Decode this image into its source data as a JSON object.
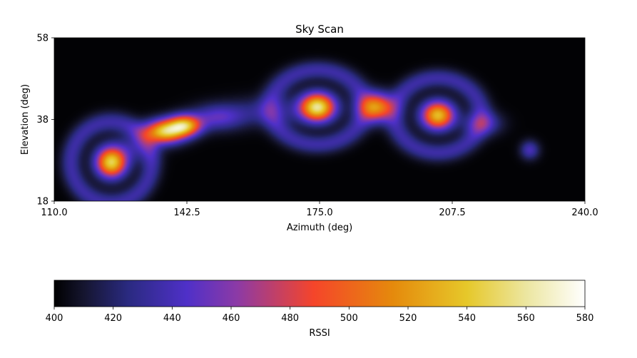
{
  "chart_data": {
    "type": "heatmap",
    "title": "Sky Scan",
    "xlabel": "Azimuth (deg)",
    "ylabel": "Elevation (deg)",
    "xlim": [
      110.0,
      240.0
    ],
    "ylim": [
      18,
      58
    ],
    "x_ticks": [
      110.0,
      142.5,
      175.0,
      207.5,
      240.0
    ],
    "x_tick_labels": [
      "110.0",
      "142.5",
      "175.0",
      "207.5",
      "240.0"
    ],
    "y_ticks": [
      18,
      38,
      58
    ],
    "y_tick_labels": [
      "18",
      "38",
      "58"
    ],
    "grid": false,
    "colormap": "CMRmap",
    "colormap_stops": [
      {
        "v": 400,
        "color": "#000000"
      },
      {
        "v": 410,
        "color": "#15152f"
      },
      {
        "v": 425,
        "color": "#2a2a80"
      },
      {
        "v": 445,
        "color": "#4f30c8"
      },
      {
        "v": 462,
        "color": "#8c3aa6"
      },
      {
        "v": 488,
        "color": "#f5452a"
      },
      {
        "v": 515,
        "color": "#e58a0c"
      },
      {
        "v": 540,
        "color": "#e6c82a"
      },
      {
        "v": 560,
        "color": "#ece6a0"
      },
      {
        "v": 580,
        "color": "#ffffff"
      }
    ],
    "background_level": 401,
    "sources": [
      {
        "azimuth": 124.0,
        "elevation": 27.5,
        "peak": 545,
        "sigma_az": 2.6,
        "sigma_el": 2.6,
        "ring": true
      },
      {
        "azimuth": 137.0,
        "elevation": 35.0,
        "peak": 535,
        "sigma_az": 3.4,
        "sigma_el": 2.0,
        "ring": false
      },
      {
        "azimuth": 142.0,
        "elevation": 36.5,
        "peak": 520,
        "sigma_az": 2.8,
        "sigma_el": 1.8,
        "ring": false
      },
      {
        "azimuth": 150.0,
        "elevation": 38.5,
        "peak": 445,
        "sigma_az": 4.5,
        "sigma_el": 2.2,
        "ring": false
      },
      {
        "azimuth": 174.5,
        "elevation": 41.0,
        "peak": 555,
        "sigma_az": 3.0,
        "sigma_el": 2.4,
        "ring": true
      },
      {
        "azimuth": 189.0,
        "elevation": 41.0,
        "peak": 510,
        "sigma_az": 2.8,
        "sigma_el": 2.4,
        "ring": false
      },
      {
        "azimuth": 204.0,
        "elevation": 39.0,
        "peak": 535,
        "sigma_az": 2.8,
        "sigma_el": 2.4,
        "ring": true
      },
      {
        "azimuth": 215.0,
        "elevation": 37.0,
        "peak": 440,
        "sigma_az": 3.2,
        "sigma_el": 2.0,
        "ring": false
      },
      {
        "azimuth": 226.5,
        "elevation": 30.5,
        "peak": 440,
        "sigma_az": 1.6,
        "sigma_el": 1.6,
        "ring": false
      },
      {
        "azimuth": 162.0,
        "elevation": 40.0,
        "peak": 425,
        "sigma_az": 7.0,
        "sigma_el": 2.5,
        "ring": false
      },
      {
        "azimuth": 130.0,
        "elevation": 31.0,
        "peak": 425,
        "sigma_az": 3.5,
        "sigma_el": 2.5,
        "ring": false
      }
    ],
    "colorbar": {
      "label": "RSSI",
      "min": 400,
      "max": 580,
      "ticks": [
        400,
        420,
        440,
        460,
        480,
        500,
        520,
        540,
        560,
        580
      ],
      "tick_labels": [
        "400",
        "420",
        "440",
        "460",
        "480",
        "500",
        "520",
        "540",
        "560",
        "580"
      ],
      "orientation": "horizontal"
    }
  }
}
